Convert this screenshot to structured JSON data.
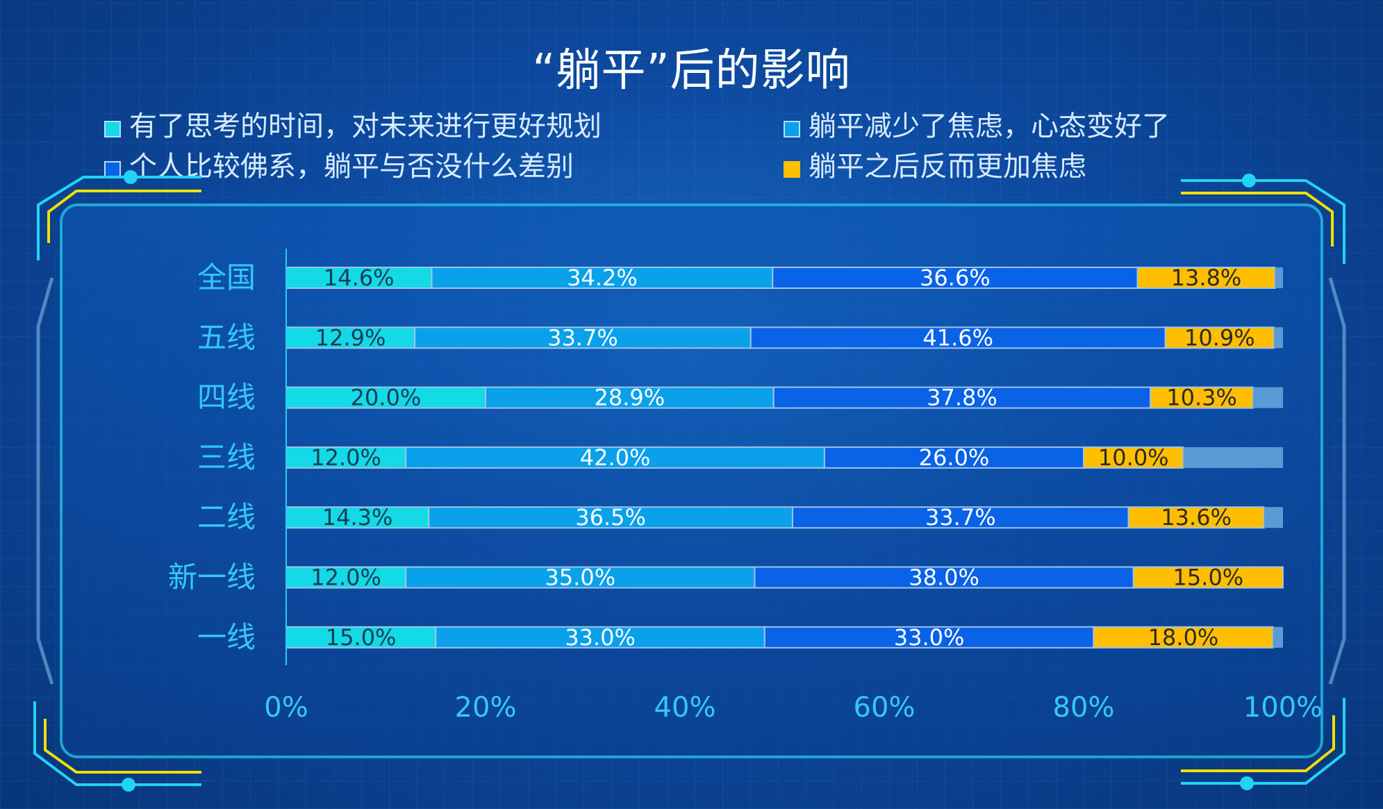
{
  "chart_data": {
    "type": "bar",
    "orientation": "horizontal-stacked-percent",
    "title": "“躺平”后的影响",
    "categories": [
      "全国",
      "五线",
      "四线",
      "三线",
      "二线",
      "新一线",
      "一线"
    ],
    "series": [
      {
        "name": "有了思考的时间，对未来进行更好规划",
        "color": "#14d9e6",
        "values": [
          14.6,
          12.9,
          20.0,
          12.0,
          14.3,
          12.0,
          15.0
        ],
        "labels": [
          "14.6%",
          "12.9%",
          "20.0%",
          "12.0%",
          "14.3%",
          "12.0%",
          "15.0%"
        ],
        "label_color": "#1a3a55"
      },
      {
        "name": "躺平减少了焦虑，心态变好了",
        "color": "#0aa0ea",
        "values": [
          34.2,
          33.7,
          28.9,
          42.0,
          36.5,
          35.0,
          33.0
        ],
        "labels": [
          "34.2%",
          "33.7%",
          "28.9%",
          "42.0%",
          "36.5%",
          "35.0%",
          "33.0%"
        ],
        "label_color": "#ffffff"
      },
      {
        "name": "个人比较佛系，躺平与否没什么差别",
        "color": "#0a62e6",
        "values": [
          36.6,
          41.6,
          37.8,
          26.0,
          33.7,
          38.0,
          33.0
        ],
        "labels": [
          "36.6%",
          "41.6%",
          "37.8%",
          "26.0%",
          "33.7%",
          "38.0%",
          "33.0%"
        ],
        "label_color": "#ffffff"
      },
      {
        "name": "躺平之后反而更加焦虑",
        "color": "#ffbf00",
        "values": [
          13.8,
          10.9,
          10.3,
          10.0,
          13.6,
          15.0,
          18.0
        ],
        "labels": [
          "13.8%",
          "10.9%",
          "10.3%",
          "10.0%",
          "13.6%",
          "15.0%",
          "18.0%"
        ],
        "label_color": "#2a2a2a"
      }
    ],
    "xlim": [
      0,
      100
    ],
    "xticks": [
      "0%",
      "20%",
      "40%",
      "60%",
      "80%",
      "100%"
    ],
    "xlabel": "",
    "ylabel": "",
    "remainder_color": "#5b9bd5",
    "legend_position": "top"
  },
  "theme": {
    "tick_color": "#35c8f5",
    "axis_color": "#35c8f5",
    "frame_color": "#22d3f5",
    "accent_color": "#f0e000"
  }
}
